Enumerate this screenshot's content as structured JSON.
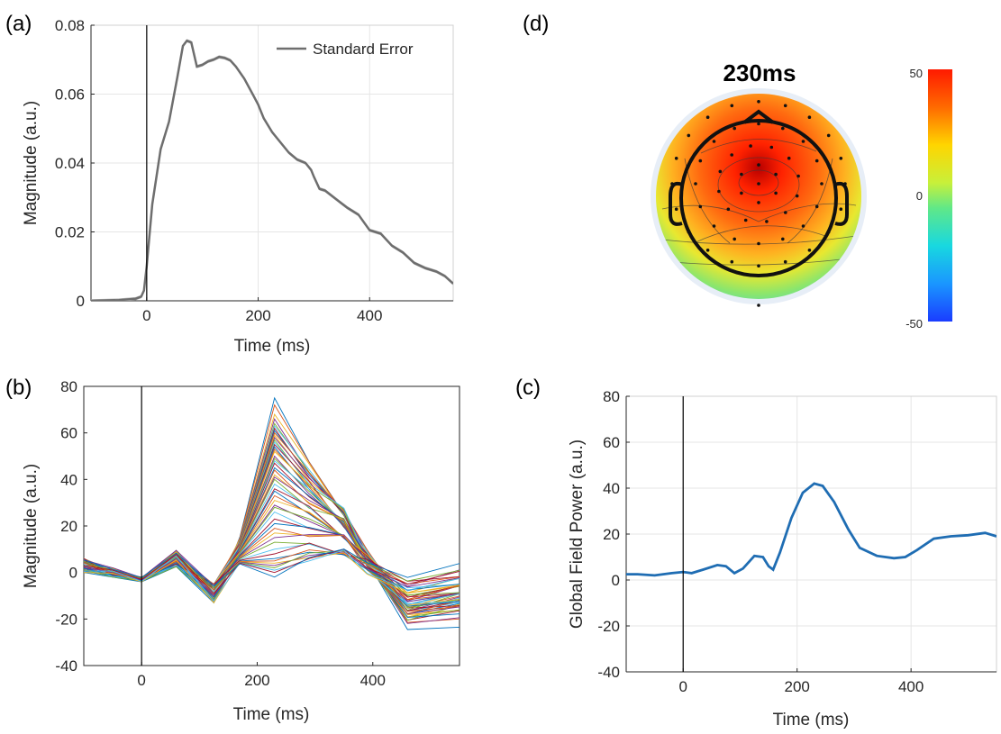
{
  "panels": {
    "a": "(a)",
    "b": "(b)",
    "c": "(c)",
    "d": "(d)"
  },
  "colors": {
    "panel_a_line": "#6e6e6e",
    "panel_c_line": "#1f6db3",
    "stimulus_line": "#000000",
    "grid": "#e6e6e6"
  },
  "chart_data": [
    {
      "id": "a",
      "type": "line",
      "xlabel": "Time (ms)",
      "ylabel": "Magnitude (a.u.)",
      "xlim": [
        -100,
        550
      ],
      "ylim": [
        0,
        0.08
      ],
      "xticks": [
        0,
        200,
        400
      ],
      "xtick_labels": [
        "0",
        "200",
        "400"
      ],
      "yticks": [
        0,
        0.02,
        0.04,
        0.06,
        0.08
      ],
      "ytick_labels": [
        "0",
        "0.02",
        "0.04",
        "0.06",
        "0.08"
      ],
      "grid": true,
      "legend": "top-right",
      "stimulus_onset": 0,
      "series": [
        {
          "name": "Standard Error",
          "x": [
            -100,
            -50,
            -20,
            -10,
            -5,
            0,
            10,
            25,
            40,
            55,
            65,
            72,
            80,
            90,
            100,
            110,
            120,
            130,
            140,
            150,
            160,
            175,
            190,
            200,
            210,
            225,
            240,
            255,
            270,
            285,
            295,
            300,
            310,
            320,
            340,
            360,
            380,
            400,
            420,
            440,
            460,
            480,
            500,
            520,
            535,
            550
          ],
          "y": [
            0.0,
            0.0002,
            0.0006,
            0.0012,
            0.003,
            0.01,
            0.028,
            0.044,
            0.052,
            0.065,
            0.074,
            0.0755,
            0.075,
            0.068,
            0.0685,
            0.0695,
            0.07,
            0.0708,
            0.0705,
            0.0698,
            0.068,
            0.0645,
            0.06,
            0.057,
            0.053,
            0.049,
            0.046,
            0.043,
            0.041,
            0.04,
            0.038,
            0.036,
            0.0325,
            0.032,
            0.0295,
            0.027,
            0.025,
            0.0205,
            0.0195,
            0.016,
            0.014,
            0.011,
            0.0095,
            0.0085,
            0.0072,
            0.005
          ]
        }
      ]
    },
    {
      "id": "b",
      "type": "line",
      "xlabel": "Time (ms)",
      "ylabel": "Magnitude (a.u.)",
      "xlim": [
        -100,
        550
      ],
      "ylim": [
        -40,
        80
      ],
      "xticks": [
        0,
        200,
        400
      ],
      "xtick_labels": [
        "0",
        "200",
        "400"
      ],
      "yticks": [
        -40,
        -20,
        0,
        20,
        40,
        60,
        80
      ],
      "ytick_labels": [
        "-40",
        "-20",
        "0",
        "20",
        "40",
        "60",
        "80"
      ],
      "grid": false,
      "stimulus_onset": 0,
      "x": [
        -100,
        -50,
        0,
        60,
        125,
        170,
        230,
        290,
        350,
        390,
        460,
        550
      ],
      "series_colors": [
        "#0072bd",
        "#d95319",
        "#edb120",
        "#7e2f8e",
        "#77ac30",
        "#4dbeee",
        "#a2142f"
      ],
      "peaks_at_230ms": [
        75,
        72,
        68,
        66,
        64,
        63,
        62,
        61,
        60,
        59,
        58,
        57,
        56,
        55,
        54,
        53,
        52,
        50,
        49,
        48,
        47,
        45,
        44,
        42,
        41,
        40,
        38,
        36,
        35,
        33,
        31,
        29,
        28,
        26,
        23,
        21,
        19,
        17,
        15,
        13,
        10,
        8,
        6,
        5,
        4,
        3,
        2,
        1,
        0,
        -2
      ]
    },
    {
      "id": "c",
      "type": "line",
      "xlabel": "Time (ms)",
      "ylabel": "Global Field Power (a.u.)",
      "xlim": [
        -100,
        550
      ],
      "ylim": [
        -40,
        80
      ],
      "xticks": [
        0,
        200,
        400
      ],
      "xtick_labels": [
        "0",
        "200",
        "400"
      ],
      "yticks": [
        -40,
        -20,
        0,
        20,
        40,
        60,
        80
      ],
      "ytick_labels": [
        "-40",
        "-20",
        "0",
        "20",
        "40",
        "60",
        "80"
      ],
      "grid": true,
      "stimulus_onset": 0,
      "series": [
        {
          "x": [
            -100,
            -80,
            -50,
            -20,
            0,
            15,
            35,
            60,
            75,
            90,
            105,
            125,
            140,
            150,
            158,
            170,
            190,
            210,
            230,
            245,
            265,
            290,
            310,
            340,
            370,
            390,
            410,
            440,
            470,
            500,
            530,
            550
          ],
          "y": [
            2.5,
            2.5,
            2,
            3,
            3.5,
            3,
            4.5,
            6.5,
            6,
            3,
            5,
            10.5,
            10,
            6,
            4.5,
            12,
            27,
            38,
            42,
            41,
            34,
            22,
            14,
            10.5,
            9.5,
            10,
            13,
            18,
            19,
            19.5,
            20.5,
            19
          ]
        }
      ]
    },
    {
      "id": "d",
      "type": "heatmap",
      "title": "230ms",
      "colorbar_ticks": [
        50,
        0,
        -50
      ],
      "colorbar_tick_labels": [
        "50",
        "0",
        "-50"
      ],
      "clim": [
        -50,
        50
      ]
    }
  ]
}
